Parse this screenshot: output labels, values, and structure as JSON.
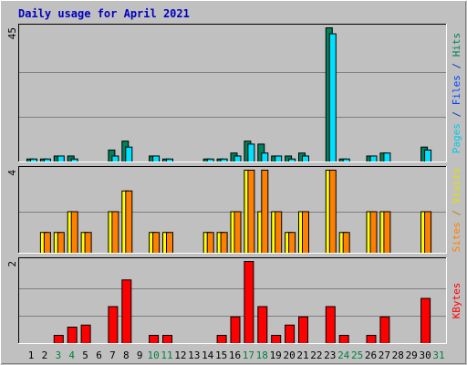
{
  "title": "Daily usage for April 2021",
  "chart_data": [
    {
      "type": "bar",
      "ylim": [
        0,
        45
      ],
      "yticks": [
        45
      ],
      "grid": [
        15,
        30
      ],
      "label_parts": [
        {
          "text": "Pages",
          "color": "#00c8e8"
        },
        {
          "text": " / ",
          "color": "#0040c0"
        },
        {
          "text": "Files",
          "color": "#0040ff"
        },
        {
          "text": " / ",
          "color": "#0040c0"
        },
        {
          "text": "Hits",
          "color": "#00805c"
        }
      ],
      "series": [
        {
          "color": "#00805c",
          "values": [
            1,
            1,
            2,
            2,
            0,
            0,
            4,
            7,
            0,
            2,
            1,
            0,
            0,
            1,
            1,
            3,
            7,
            6,
            2,
            2,
            3,
            0,
            45,
            1,
            0,
            2,
            3,
            0,
            0,
            5,
            0
          ]
        },
        {
          "color": "#00e0ff",
          "values": [
            1,
            1,
            2,
            1,
            0,
            0,
            2,
            5,
            0,
            2,
            1,
            0,
            0,
            1,
            1,
            2,
            6,
            3,
            2,
            1,
            2,
            0,
            43,
            1,
            0,
            2,
            3,
            0,
            0,
            4,
            0
          ]
        }
      ]
    },
    {
      "type": "bar",
      "ylim": [
        0,
        4
      ],
      "yticks": [
        4
      ],
      "grid": [
        2
      ],
      "label_parts": [
        {
          "text": "Sites",
          "color": "#ff8000"
        },
        {
          "text": " / ",
          "color": "#c08000"
        },
        {
          "text": "Visits",
          "color": "#e0e000"
        }
      ],
      "series": [
        {
          "color": "#ffff00",
          "values": [
            0,
            1,
            1,
            2,
            1,
            0,
            2,
            3,
            0,
            1,
            1,
            0,
            0,
            1,
            1,
            2,
            4,
            2,
            2,
            1,
            2,
            0,
            4,
            1,
            0,
            2,
            2,
            0,
            0,
            2,
            0
          ]
        },
        {
          "color": "#ff8000",
          "values": [
            0,
            1,
            1,
            2,
            1,
            0,
            2,
            3,
            0,
            1,
            1,
            0,
            0,
            1,
            1,
            2,
            4,
            4,
            2,
            1,
            2,
            0,
            4,
            1,
            0,
            2,
            2,
            0,
            0,
            2,
            0
          ]
        }
      ]
    },
    {
      "type": "bar",
      "ylim": [
        0,
        2
      ],
      "yticks": [
        2
      ],
      "grid": [
        0.667,
        1.333
      ],
      "label_parts": [
        {
          "text": "KBytes",
          "color": "#ff0000"
        }
      ],
      "categories": [
        "1",
        "2",
        "3",
        "4",
        "5",
        "6",
        "7",
        "8",
        "9",
        "10",
        "11",
        "12",
        "13",
        "14",
        "15",
        "16",
        "17",
        "18",
        "19",
        "20",
        "21",
        "22",
        "23",
        "24",
        "25",
        "26",
        "27",
        "28",
        "29",
        "30",
        "31"
      ],
      "category_colors": [
        "#000000",
        "#000000",
        "#008040",
        "#008040",
        "#000000",
        "#000000",
        "#000000",
        "#000000",
        "#000000",
        "#008040",
        "#008040",
        "#000000",
        "#000000",
        "#000000",
        "#000000",
        "#000000",
        "#008040",
        "#008040",
        "#000000",
        "#000000",
        "#000000",
        "#000000",
        "#000000",
        "#008040",
        "#008040",
        "#000000",
        "#000000",
        "#000000",
        "#000000",
        "#000000",
        "#008040"
      ],
      "series": [
        {
          "color": "#ff0000",
          "values": [
            0,
            0,
            0.2,
            0.4,
            0.45,
            0,
            0.9,
            1.55,
            0,
            0.2,
            0.2,
            0,
            0,
            0,
            0.2,
            0.65,
            2,
            0.9,
            0.2,
            0.45,
            0.65,
            0,
            0.9,
            0.2,
            0,
            0.2,
            0.65,
            0,
            0,
            1.1,
            0
          ]
        }
      ]
    }
  ]
}
